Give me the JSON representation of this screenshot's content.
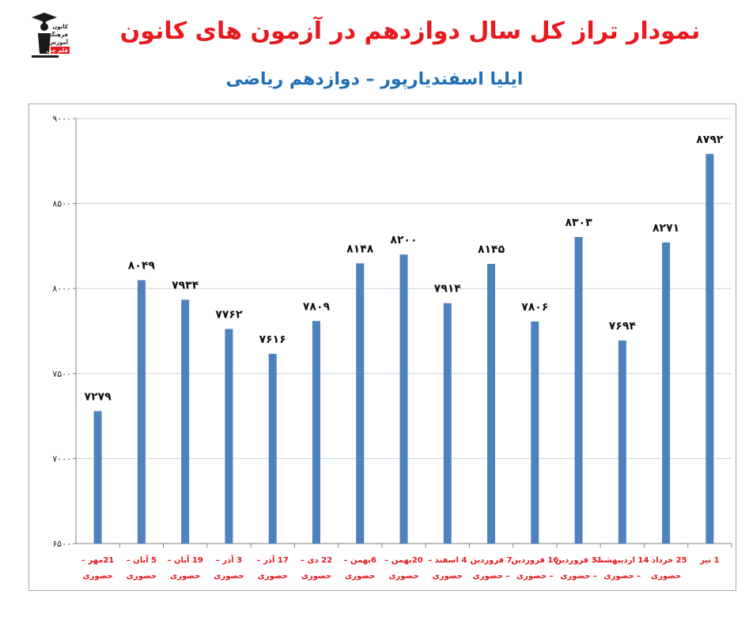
{
  "page": {
    "title": "نمودار تراز کل سال دوازدهم در آزمون های کانون",
    "subtitle": "ایلیا اسفندیارپور – دوازدهم ریاضی",
    "logo_text": [
      "کانون",
      "فرهنگی",
      "آموزش",
      "قلم چی"
    ]
  },
  "colors": {
    "title": "#e8191f",
    "subtitle": "#1f6fb5",
    "bar": "#4f81bd",
    "xlabel": "#e8191f",
    "grid": "#c9d3e3"
  },
  "chart_data": {
    "type": "bar",
    "title": "نمودار تراز کل سال دوازدهم در آزمون های کانون",
    "subtitle": "ایلیا اسفندیارپور – دوازدهم ریاضی",
    "ylim": [
      6500,
      9000
    ],
    "yticks": [
      6500,
      7000,
      7500,
      8000,
      8500,
      9000
    ],
    "ytick_labels": [
      "۶۵۰۰",
      "۷۰۰۰",
      "۷۵۰۰",
      "۸۰۰۰",
      "۸۵۰۰",
      "۹۰۰۰"
    ],
    "grid": true,
    "categories": [
      [
        "21مهر –",
        "حضوری"
      ],
      [
        "5 آبان –",
        "حضوری"
      ],
      [
        "19 آبان –",
        "حضوری"
      ],
      [
        "3 آذر –",
        "حضوری"
      ],
      [
        "17 آذر –",
        "حضوری"
      ],
      [
        "22 دی –",
        "حضوری"
      ],
      [
        "6بهمن –",
        "حضوری"
      ],
      [
        "20بهمن –",
        "حضوری"
      ],
      [
        "4 اسفند –",
        "حضوری"
      ],
      [
        "7 فروردین",
        "– حضوری"
      ],
      [
        "16 فروردین",
        "– حضوری"
      ],
      [
        "31 فروردین",
        "– حضوری"
      ],
      [
        "14 اردیبهشت",
        "– حضوری"
      ],
      [
        "25 خرداد –",
        "حضوری"
      ],
      [
        "1 تیر",
        ""
      ]
    ],
    "values": [
      7279,
      8049,
      7934,
      7762,
      7616,
      7809,
      8148,
      8200,
      7914,
      8145,
      7806,
      8303,
      7694,
      8271,
      8792
    ],
    "value_labels": [
      "۷۲۷۹",
      "۸۰۴۹",
      "۷۹۳۴",
      "۷۷۶۲",
      "۷۶۱۶",
      "۷۸۰۹",
      "۸۱۴۸",
      "۸۲۰۰",
      "۷۹۱۴",
      "۸۱۴۵",
      "۷۸۰۶",
      "۸۳۰۳",
      "۷۶۹۴",
      "۸۲۷۱",
      "۸۷۹۲"
    ]
  }
}
